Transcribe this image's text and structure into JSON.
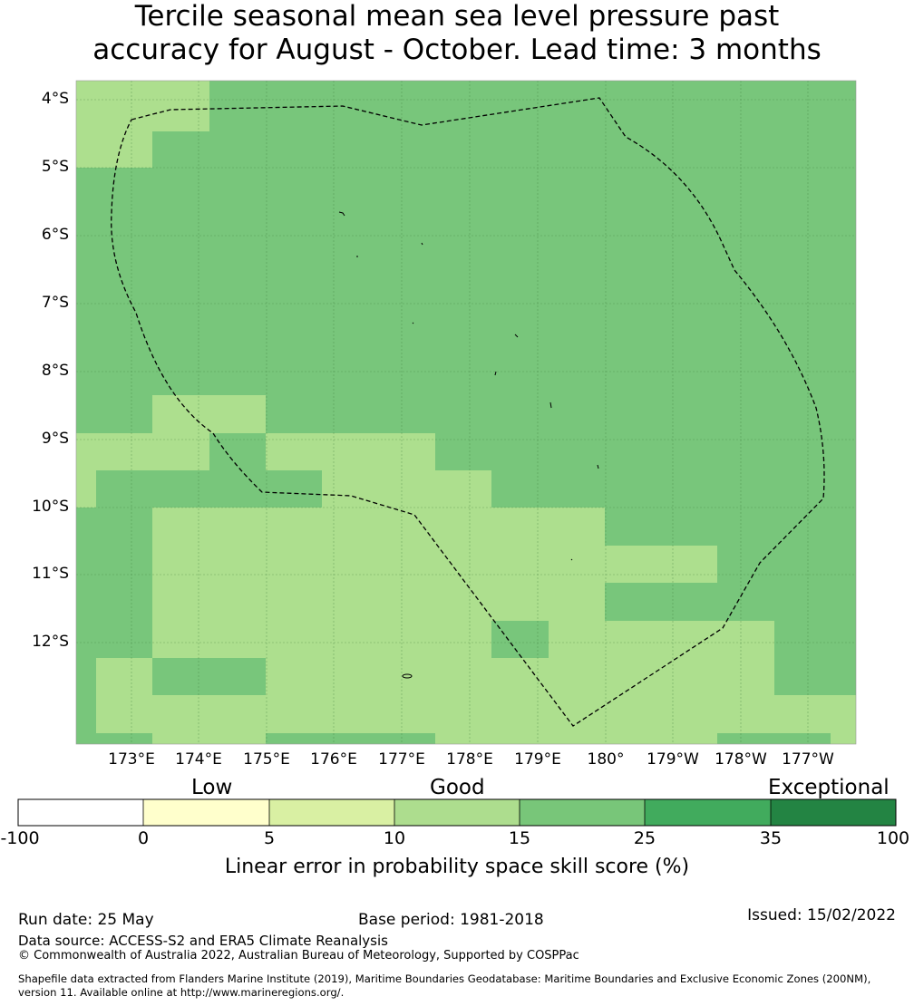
{
  "title_lines": [
    "Tercile seasonal mean sea level pressure past",
    "accuracy for August - October. Lead time: 3 months"
  ],
  "map": {
    "lat_labels": [
      "4°S",
      "5°S",
      "6°S",
      "7°S",
      "8°S",
      "9°S",
      "10°S",
      "11°S",
      "12°S"
    ],
    "lon_labels": [
      "173°E",
      "174°E",
      "175°E",
      "176°E",
      "177°E",
      "178°E",
      "179°E",
      "180°",
      "179°W",
      "178°W",
      "177°W"
    ],
    "colors": {
      "10-15": "#addf8e",
      "15-25": "#78c67b",
      "dashed_boundary": "#000000"
    }
  },
  "colorbar": {
    "categories": [
      "Low",
      "Good",
      "Exceptional"
    ],
    "ticks": [
      "-100",
      "0",
      "5",
      "10",
      "15",
      "25",
      "35",
      "100"
    ],
    "colors": [
      "#ffffff",
      "#ffffcc",
      "#d9f0a3",
      "#addd8e",
      "#78c679",
      "#41ab5d",
      "#238443"
    ],
    "label": "Linear error in probability space skill score (%)"
  },
  "footer": {
    "run_date": "Run date: 25 May",
    "base_period": "Base period: 1981-2018",
    "issued": "Issued: 15/02/2022",
    "data_source": "Data source: ACCESS-S2 and ERA5 Climate Reanalysis",
    "copyright": "© Commonwealth of Australia 2022, Australian Bureau of Meteorology, Supported by COSPPac",
    "shapefile_line1": "Shapefile data extracted from Flanders Marine Institute (2019), Maritime Boundaries Geodatabase: Maritime Boundaries and Exclusive Economic Zones (200NM),",
    "shapefile_line2": "version 11. Available online at http://www.marineregions.org/."
  }
}
